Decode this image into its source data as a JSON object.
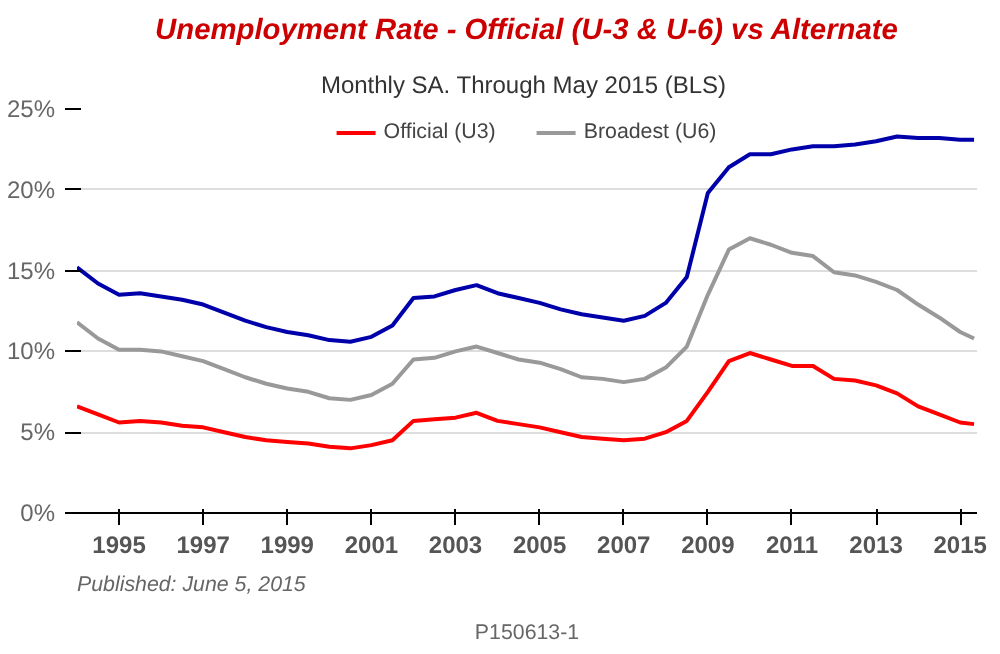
{
  "chart_data": {
    "type": "line",
    "title": "Unemployment Rate - Official (U-3 & U-6) vs Alternate",
    "subtitle": "Monthly SA. Through May 2015  (BLS)",
    "x": [
      1994.0,
      1994.5,
      1995.0,
      1995.5,
      1996.0,
      1996.5,
      1997.0,
      1997.5,
      1998.0,
      1998.5,
      1999.0,
      1999.5,
      2000.0,
      2000.5,
      2001.0,
      2001.5,
      2002.0,
      2002.5,
      2003.0,
      2003.5,
      2004.0,
      2004.5,
      2005.0,
      2005.5,
      2006.0,
      2006.5,
      2007.0,
      2007.5,
      2008.0,
      2008.5,
      2009.0,
      2009.5,
      2010.0,
      2010.5,
      2011.0,
      2011.5,
      2012.0,
      2012.5,
      2013.0,
      2013.5,
      2014.0,
      2014.5,
      2015.0,
      2015.33
    ],
    "series": [
      {
        "name": "Official (U3)",
        "color": "#ff0000",
        "values": [
          6.6,
          6.1,
          5.6,
          5.7,
          5.6,
          5.4,
          5.3,
          5.0,
          4.7,
          4.5,
          4.4,
          4.3,
          4.1,
          4.0,
          4.2,
          4.5,
          5.7,
          5.8,
          5.9,
          6.2,
          5.7,
          5.5,
          5.3,
          5.0,
          4.7,
          4.6,
          4.5,
          4.6,
          5.0,
          5.7,
          7.5,
          9.4,
          9.9,
          9.5,
          9.1,
          9.1,
          8.3,
          8.2,
          7.9,
          7.4,
          6.6,
          6.1,
          5.6,
          5.5
        ]
      },
      {
        "name": "Broadest (U6)",
        "color": "#999999",
        "values": [
          11.8,
          10.8,
          10.1,
          10.1,
          10.0,
          9.7,
          9.4,
          8.9,
          8.4,
          8.0,
          7.7,
          7.5,
          7.1,
          7.0,
          7.3,
          8.0,
          9.5,
          9.6,
          10.0,
          10.3,
          9.9,
          9.5,
          9.3,
          8.9,
          8.4,
          8.3,
          8.1,
          8.3,
          9.0,
          10.3,
          13.5,
          16.3,
          17.0,
          16.6,
          16.1,
          15.9,
          14.9,
          14.7,
          14.3,
          13.8,
          12.9,
          12.1,
          11.2,
          10.8
        ]
      },
      {
        "color": "#0000aa",
        "values": [
          15.2,
          14.2,
          13.5,
          13.6,
          13.4,
          13.2,
          12.9,
          12.4,
          11.9,
          11.5,
          11.2,
          11.0,
          10.7,
          10.6,
          10.9,
          11.6,
          13.3,
          13.4,
          13.8,
          14.1,
          13.6,
          13.3,
          13.0,
          12.6,
          12.3,
          12.1,
          11.9,
          12.2,
          13.0,
          14.6,
          19.8,
          21.4,
          22.2,
          22.2,
          22.5,
          22.7,
          22.7,
          22.8,
          23.0,
          23.3,
          23.2,
          23.2,
          23.1,
          23.1
        ]
      }
    ],
    "xlim": [
      1994.0,
      2015.4
    ],
    "xticks": [
      1995,
      1997,
      1999,
      2001,
      2003,
      2005,
      2007,
      2009,
      2011,
      2013,
      2015
    ],
    "ylim": [
      0,
      25
    ],
    "yticks": [
      {
        "value": 0,
        "label": "0%"
      },
      {
        "value": 5,
        "label": "5%"
      },
      {
        "value": 10,
        "label": "10%"
      },
      {
        "value": 15,
        "label": "15%"
      },
      {
        "value": 20,
        "label": "20%"
      },
      {
        "value": 25,
        "label": "25%"
      }
    ],
    "grid": "y",
    "legend": "top",
    "marker": "none",
    "line_style": "solid",
    "annotations": [
      "Published: June 5, 2015",
      "P150613-1"
    ]
  }
}
